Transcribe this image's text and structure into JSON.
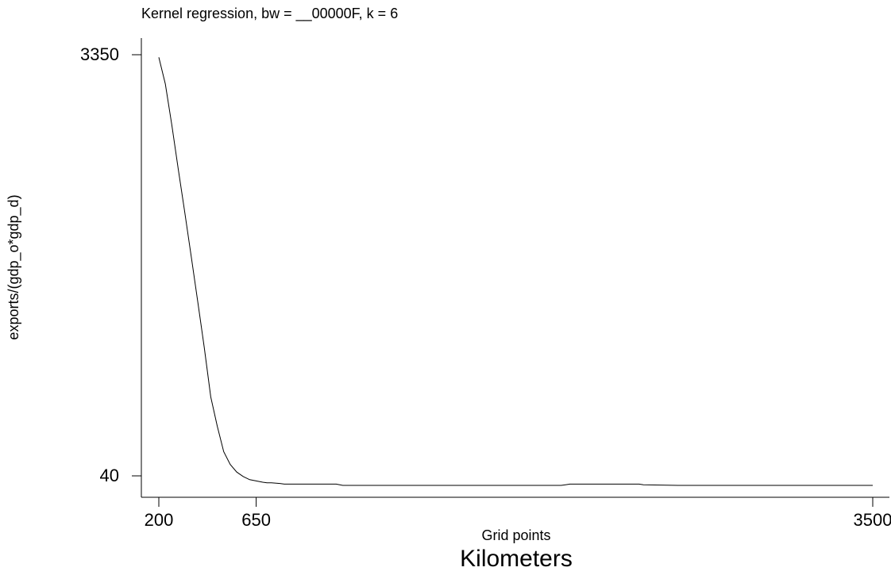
{
  "chart_data": {
    "type": "line",
    "title": "Kernel regression, bw = __00000F, k = 6",
    "xlabel": "Grid points",
    "ylabel": "exports/(gdp_o*gdp_d)",
    "caption": "Kilometers",
    "xlim": [
      200,
      3500
    ],
    "ylim": [
      40,
      3350
    ],
    "xticks": [
      200,
      650,
      3500
    ],
    "yticks": [
      3350,
      40
    ],
    "grid": false,
    "series": [
      {
        "x": [
          200,
          230,
          260,
          290,
          320,
          350,
          380,
          410,
          440,
          470,
          500,
          530,
          560,
          590,
          620,
          650,
          680,
          700,
          720,
          760,
          780,
          800,
          880,
          950,
          980,
          1020,
          1050,
          1100,
          1200,
          1500,
          1800,
          2060,
          2080,
          2100,
          2200,
          2300,
          2400,
          2420,
          2440,
          2600,
          2800,
          3000,
          3200,
          3500
        ],
        "y": [
          3330,
          3120,
          2800,
          2450,
          2110,
          1760,
          1410,
          1050,
          660,
          430,
          230,
          130,
          70,
          35,
          10,
          0,
          -10,
          -15,
          -15,
          -20,
          -25,
          -25,
          -25,
          -25,
          -25,
          -25,
          -35,
          -35,
          -35,
          -35,
          -35,
          -35,
          -30,
          -25,
          -25,
          -25,
          -25,
          -25,
          -30,
          -35,
          -35,
          -35,
          -35,
          -35
        ]
      }
    ]
  }
}
